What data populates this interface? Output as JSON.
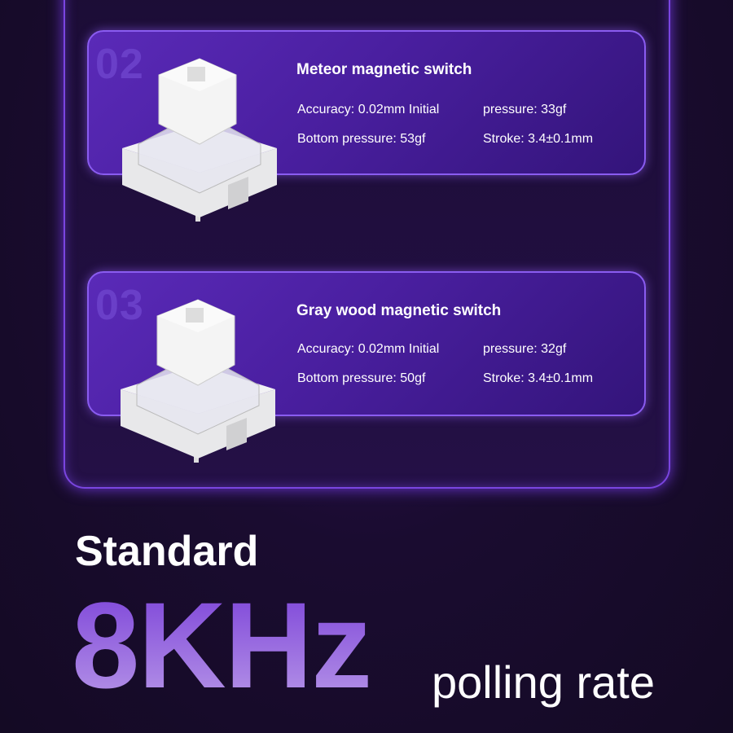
{
  "switches": [
    {
      "number": "02",
      "name": "Meteor magnetic switch",
      "accuracy": "Accuracy: 0.02mm Initial",
      "initial_pressure": "pressure: 33gf",
      "bottom_pressure": "Bottom pressure: 53gf",
      "stroke": "Stroke: 3.4±0.1mm"
    },
    {
      "number": "03",
      "name": "Gray wood magnetic switch",
      "accuracy": "Accuracy: 0.02mm Initial",
      "initial_pressure": "pressure: 32gf",
      "bottom_pressure": "Bottom pressure: 50gf",
      "stroke": "Stroke: 3.4±0.1mm"
    }
  ],
  "headline": {
    "label": "Standard",
    "value": "8KHz",
    "suffix": "polling rate"
  },
  "colors": {
    "accent": "#8a5cf0",
    "card": "#4a1fa0",
    "background": "#150a26"
  }
}
